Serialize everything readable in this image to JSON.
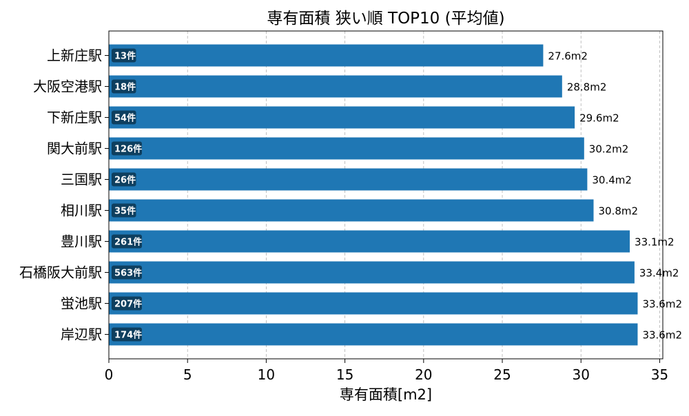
{
  "chart_data": {
    "type": "bar",
    "orientation": "horizontal",
    "title": "専有面積 狭い順 TOP10 (平均値)",
    "xlabel": "専有面積[m2]",
    "ylabel": "",
    "xlim": [
      0,
      35.2
    ],
    "xticks": [
      "0",
      "5",
      "10",
      "15",
      "20",
      "25",
      "30",
      "35"
    ],
    "grid": "x",
    "bar_color": "#1f77b4",
    "badge_color": "#0e3f5f",
    "categories": [
      "上新庄駅",
      "大阪空港駅",
      "下新庄駅",
      "関大前駅",
      "三国駅",
      "相川駅",
      "豊川駅",
      "石橋阪大前駅",
      "蛍池駅",
      "岸辺駅"
    ],
    "values": [
      27.6,
      28.8,
      29.6,
      30.2,
      30.4,
      30.8,
      33.1,
      33.4,
      33.6,
      33.6
    ],
    "value_labels": [
      "27.6m2",
      "28.8m2",
      "29.6m2",
      "30.2m2",
      "30.4m2",
      "30.8m2",
      "33.1m2",
      "33.4m2",
      "33.6m2",
      "33.6m2"
    ],
    "count_labels": [
      "13件",
      "18件",
      "54件",
      "126件",
      "26件",
      "35件",
      "261件",
      "563件",
      "207件",
      "174件"
    ]
  }
}
